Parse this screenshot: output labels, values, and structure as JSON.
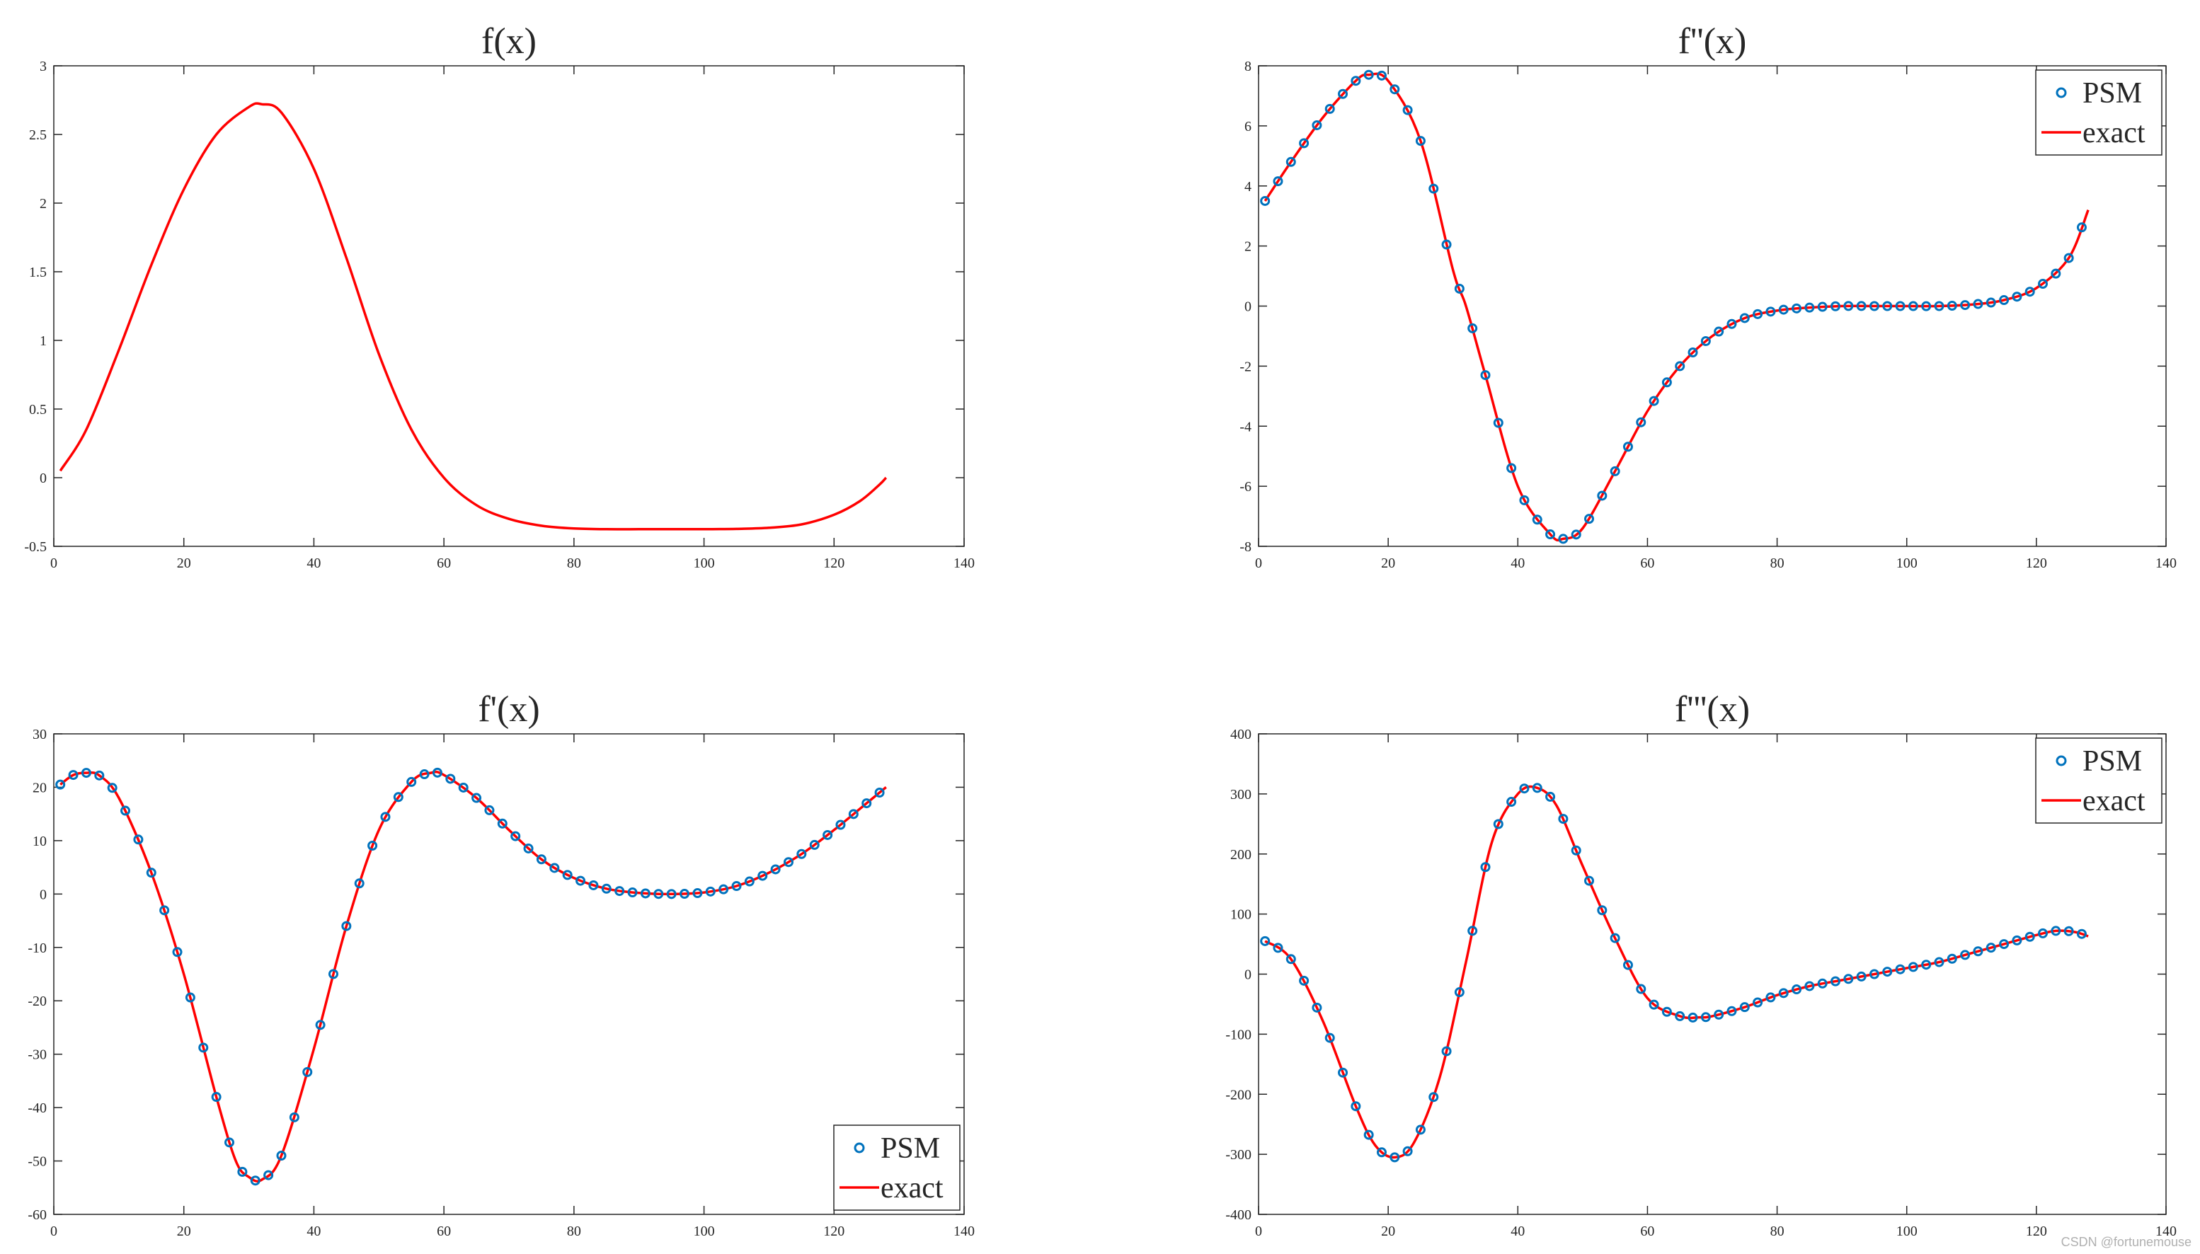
{
  "colors": {
    "psm": "#0072BD",
    "exact": "#FF0000",
    "axis": "#262626"
  },
  "watermark": "CSDN @fortunemouse",
  "chart_data": [
    {
      "id": "f",
      "type": "line",
      "title": "f(x)",
      "xlim": [
        0,
        140
      ],
      "ylim": [
        -0.5,
        3
      ],
      "xticks": [
        0,
        20,
        40,
        60,
        80,
        100,
        120,
        140
      ],
      "yticks": [
        -0.5,
        0,
        0.5,
        1,
        1.5,
        2,
        2.5,
        3
      ],
      "grid": false,
      "legend": null,
      "series": [
        {
          "kind": "line",
          "x": [
            1,
            5,
            10,
            15,
            20,
            25,
            30,
            32,
            35,
            40,
            45,
            50,
            55,
            60,
            65,
            70,
            75,
            80,
            85,
            90,
            95,
            100,
            105,
            110,
            115,
            120,
            124,
            127,
            128
          ],
          "values": [
            0.05,
            0.35,
            0.93,
            1.55,
            2.1,
            2.5,
            2.7,
            2.72,
            2.66,
            2.25,
            1.6,
            0.9,
            0.35,
            0.0,
            -0.2,
            -0.3,
            -0.35,
            -0.37,
            -0.375,
            -0.375,
            -0.375,
            -0.375,
            -0.373,
            -0.365,
            -0.34,
            -0.27,
            -0.17,
            -0.05,
            0.0
          ]
        }
      ]
    },
    {
      "id": "fpp",
      "type": "line",
      "title": "f''(x)",
      "xlim": [
        0,
        140
      ],
      "ylim": [
        -8,
        8
      ],
      "xticks": [
        0,
        20,
        40,
        60,
        80,
        100,
        120,
        140
      ],
      "yticks": [
        -8,
        -6,
        -4,
        -2,
        0,
        2,
        4,
        6,
        8
      ],
      "grid": false,
      "legend": {
        "position": "top-right",
        "entries": [
          "PSM",
          "exact"
        ]
      },
      "series": [
        {
          "name": "PSM",
          "kind": "markers",
          "x": [
            1,
            5,
            10,
            15,
            17,
            20,
            25,
            30,
            32,
            35,
            40,
            45,
            47,
            50,
            55,
            60,
            65,
            70,
            75,
            80,
            85,
            90,
            95,
            100,
            105,
            110,
            115,
            120,
            125,
            128
          ],
          "values": [
            3.5,
            4.8,
            6.3,
            7.5,
            7.7,
            7.5,
            5.5,
            1.2,
            0.0,
            -2.3,
            -6.0,
            -7.6,
            -7.75,
            -7.4,
            -5.5,
            -3.5,
            -2.0,
            -1.0,
            -0.4,
            -0.15,
            -0.05,
            0.0,
            0.0,
            0.0,
            0.0,
            0.05,
            0.2,
            0.6,
            1.6,
            3.2
          ]
        },
        {
          "name": "exact",
          "kind": "line",
          "x": [
            1,
            5,
            10,
            15,
            17,
            20,
            25,
            30,
            32,
            35,
            40,
            45,
            47,
            50,
            55,
            60,
            65,
            70,
            75,
            80,
            85,
            90,
            95,
            100,
            105,
            110,
            115,
            120,
            125,
            128
          ],
          "values": [
            3.5,
            4.8,
            6.3,
            7.5,
            7.7,
            7.5,
            5.5,
            1.2,
            0.0,
            -2.3,
            -6.0,
            -7.6,
            -7.75,
            -7.4,
            -5.5,
            -3.5,
            -2.0,
            -1.0,
            -0.4,
            -0.15,
            -0.05,
            0.0,
            0.0,
            0.0,
            0.0,
            0.05,
            0.2,
            0.6,
            1.6,
            3.2
          ]
        }
      ]
    },
    {
      "id": "fp",
      "type": "line",
      "title": "f'(x)",
      "xlim": [
        0,
        140
      ],
      "ylim": [
        -60,
        30
      ],
      "xticks": [
        0,
        20,
        40,
        60,
        80,
        100,
        120,
        140
      ],
      "yticks": [
        -60,
        -50,
        -40,
        -30,
        -20,
        -10,
        0,
        10,
        20,
        30
      ],
      "grid": false,
      "legend": {
        "position": "bottom-right",
        "entries": [
          "PSM",
          "exact"
        ]
      },
      "series": [
        {
          "name": "PSM",
          "kind": "markers",
          "x": [
            1,
            3,
            5,
            7,
            10,
            15,
            20,
            25,
            28,
            30,
            32,
            35,
            40,
            45,
            50,
            55,
            58,
            60,
            65,
            70,
            75,
            80,
            85,
            90,
            95,
            100,
            105,
            110,
            115,
            120,
            125,
            128
          ],
          "values": [
            20.5,
            22.3,
            22.7,
            22.2,
            18.0,
            4.0,
            -15.0,
            -38.0,
            -50.0,
            -53.0,
            -53.5,
            -49.0,
            -29.0,
            -6.0,
            12.0,
            21.0,
            22.7,
            22.3,
            18.0,
            12.0,
            6.5,
            3.0,
            1.0,
            0.2,
            0.0,
            0.3,
            1.5,
            4.0,
            7.5,
            12.0,
            17.0,
            20.0
          ]
        },
        {
          "name": "exact",
          "kind": "line",
          "x": [
            1,
            3,
            5,
            7,
            10,
            15,
            20,
            25,
            28,
            30,
            32,
            35,
            40,
            45,
            50,
            55,
            58,
            60,
            65,
            70,
            75,
            80,
            85,
            90,
            95,
            100,
            105,
            110,
            115,
            120,
            125,
            128
          ],
          "values": [
            20.5,
            22.3,
            22.7,
            22.2,
            18.0,
            4.0,
            -15.0,
            -38.0,
            -50.0,
            -53.0,
            -53.5,
            -49.0,
            -29.0,
            -6.0,
            12.0,
            21.0,
            22.7,
            22.3,
            18.0,
            12.0,
            6.5,
            3.0,
            1.0,
            0.2,
            0.0,
            0.3,
            1.5,
            4.0,
            7.5,
            12.0,
            17.0,
            20.0
          ]
        }
      ]
    },
    {
      "id": "fppp",
      "type": "line",
      "title": "f'''(x)",
      "xlim": [
        0,
        140
      ],
      "ylim": [
        -400,
        400
      ],
      "xticks": [
        0,
        20,
        40,
        60,
        80,
        100,
        120,
        140
      ],
      "yticks": [
        -400,
        -300,
        -200,
        -100,
        0,
        100,
        200,
        300,
        400
      ],
      "grid": false,
      "legend": {
        "position": "top-right",
        "entries": [
          "PSM",
          "exact"
        ]
      },
      "series": [
        {
          "name": "PSM",
          "kind": "markers",
          "x": [
            1,
            5,
            10,
            15,
            18,
            21,
            24,
            28,
            32,
            36,
            40,
            43,
            46,
            50,
            55,
            60,
            65,
            68,
            70,
            75,
            80,
            85,
            90,
            95,
            100,
            105,
            110,
            115,
            120,
            123,
            126,
            128
          ],
          "values": [
            55,
            25,
            -80,
            -220,
            -285,
            -305,
            -280,
            -170,
            20,
            220,
            300,
            310,
            280,
            180,
            60,
            -40,
            -70,
            -72,
            -70,
            -55,
            -35,
            -20,
            -10,
            0,
            10,
            20,
            35,
            50,
            65,
            72,
            70,
            63
          ]
        },
        {
          "name": "exact",
          "kind": "line",
          "x": [
            1,
            5,
            10,
            15,
            18,
            21,
            24,
            28,
            32,
            36,
            40,
            43,
            46,
            50,
            55,
            60,
            65,
            68,
            70,
            75,
            80,
            85,
            90,
            95,
            100,
            105,
            110,
            115,
            120,
            123,
            126,
            128
          ],
          "values": [
            55,
            25,
            -80,
            -220,
            -285,
            -305,
            -280,
            -170,
            20,
            220,
            300,
            310,
            280,
            180,
            60,
            -40,
            -70,
            -72,
            -70,
            -55,
            -35,
            -20,
            -10,
            0,
            10,
            20,
            35,
            50,
            65,
            72,
            70,
            63
          ]
        }
      ]
    }
  ]
}
